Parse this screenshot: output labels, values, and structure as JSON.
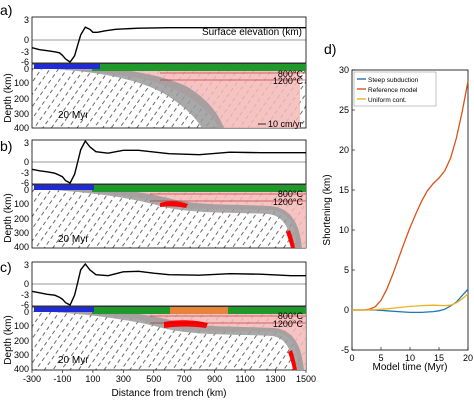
{
  "panel_letters": [
    "a)",
    "b)",
    "c)",
    "d)"
  ],
  "panels": [
    {
      "letter": "a)",
      "time_label": "20 Myr",
      "elev_label": "Surface elevation (km)",
      "iso_upper": "800°C",
      "iso_lower": "1200°C",
      "vel_label": "10 cm/yr",
      "elev_ticks": [
        "3",
        "0",
        "-3",
        "-6"
      ],
      "depth_ticks": [
        "0",
        "100",
        "200",
        "300",
        "400"
      ]
    },
    {
      "letter": "b)",
      "time_label": "20 Myr",
      "iso_upper": "800°C",
      "iso_lower": "1200°C",
      "elev_ticks": [
        "3",
        "0",
        "-3",
        "-6"
      ],
      "depth_ticks": [
        "0",
        "100",
        "200",
        "300",
        "400"
      ]
    },
    {
      "letter": "c)",
      "time_label": "20 Myr",
      "iso_upper": "800°C",
      "iso_lower": "1200°C",
      "elev_ticks": [
        "3",
        "0",
        "-3",
        "-6"
      ],
      "depth_ticks": [
        "0",
        "100",
        "200",
        "300",
        "400"
      ]
    }
  ],
  "depth_axis_label": "Depth (km)",
  "distance_axis_label": "Distance from trench (km)",
  "x_ticks": [
    "-300",
    "-100",
    "100",
    "300",
    "500",
    "700",
    "900",
    "1100",
    "1300",
    "1500"
  ],
  "colors": {
    "slab": "#9a9a9a",
    "thermal_halo": "#f4b8b8",
    "continent": "#1f9a2a",
    "ocean_plate": "#1f2bd6",
    "weak_zone": "#ff0000",
    "orange_block": "#e8843a"
  },
  "chart_data": [
    {
      "type": "line",
      "panel": "a",
      "title": "Surface elevation (km)",
      "xlabel": "Distance from trench (km)",
      "ylabel": "",
      "xlim": [
        -300,
        1500
      ],
      "ylim": [
        -6,
        3
      ],
      "series": [
        {
          "x": [
            -300,
            -250,
            -200,
            -150,
            -120,
            -100,
            -80,
            -50,
            -20,
            0,
            20,
            50,
            80,
            100,
            130,
            180,
            250,
            400,
            600,
            800,
            1000,
            1200,
            1500
          ],
          "values": [
            -3,
            -3.4,
            -3.6,
            -3.8,
            -4.0,
            -4.5,
            -5.2,
            -5.8,
            -4.6,
            -2.5,
            -0.5,
            1.0,
            0.6,
            0.0,
            0.0,
            0.3,
            0.6,
            0.8,
            0.9,
            0.9,
            0.9,
            0.9,
            0.9
          ]
        }
      ]
    },
    {
      "type": "line",
      "panel": "b",
      "xlabel": "Distance from trench (km)",
      "ylabel": "",
      "xlim": [
        -300,
        1500
      ],
      "ylim": [
        -6,
        3
      ],
      "series": [
        {
          "x": [
            -300,
            -250,
            -200,
            -150,
            -120,
            -100,
            -80,
            -50,
            -20,
            0,
            20,
            50,
            80,
            120,
            200,
            300,
            400,
            600,
            800,
            1000,
            1200,
            1400,
            1500
          ],
          "values": [
            -3,
            -3.3,
            -3.5,
            -3.8,
            -4.2,
            -4.5,
            -5.3,
            -5.8,
            -4.0,
            -1.5,
            1.0,
            2.8,
            1.6,
            0.6,
            0.3,
            0.9,
            0.9,
            0.2,
            0.0,
            0.5,
            0.4,
            0.4,
            0.4
          ]
        }
      ]
    },
    {
      "type": "line",
      "panel": "c",
      "xlabel": "Distance from trench (km)",
      "ylabel": "",
      "xlim": [
        -300,
        1500
      ],
      "ylim": [
        -6,
        3
      ],
      "series": [
        {
          "x": [
            -300,
            -250,
            -200,
            -150,
            -120,
            -100,
            -80,
            -50,
            -20,
            0,
            20,
            50,
            80,
            120,
            200,
            300,
            400,
            500,
            600,
            800,
            1000,
            1200,
            1400,
            1500
          ],
          "values": [
            -3,
            -3.3,
            -3.6,
            -3.8,
            -4.2,
            -4.6,
            -5.3,
            -5.8,
            -3.8,
            -1.2,
            1.4,
            2.6,
            1.4,
            0.4,
            0.2,
            1.0,
            1.1,
            0.7,
            0.4,
            0.3,
            0.6,
            0.5,
            0.2,
            0.2
          ]
        }
      ]
    },
    {
      "type": "line",
      "panel": "d",
      "title": "d)",
      "xlabel": "Model time (Myr)",
      "ylabel": "Shortening (km)",
      "xlim": [
        0,
        20
      ],
      "ylim": [
        -5,
        30
      ],
      "x_ticks": [
        0,
        5,
        10,
        15,
        20
      ],
      "y_ticks": [
        -5,
        0,
        5,
        10,
        15,
        20,
        25,
        30
      ],
      "legend_position": "top-left",
      "series": [
        {
          "name": "Steep subduction",
          "color": "#1f77b4",
          "x": [
            0,
            2,
            4,
            6,
            8,
            10,
            12,
            14,
            15,
            16,
            17,
            18,
            19,
            20
          ],
          "values": [
            0,
            0,
            0,
            -0.1,
            -0.2,
            -0.3,
            -0.3,
            -0.2,
            -0.1,
            0.1,
            0.5,
            1.0,
            1.8,
            2.6
          ]
        },
        {
          "name": "Reference model",
          "color": "#d95319",
          "x": [
            0,
            2,
            3,
            4,
            5,
            6,
            7,
            8,
            9,
            10,
            11,
            12,
            13,
            14,
            15,
            16,
            17,
            18,
            19,
            20
          ],
          "values": [
            0,
            0,
            0.1,
            0.4,
            1.2,
            2.6,
            4.4,
            6.4,
            8.4,
            10.3,
            12.0,
            13.6,
            14.9,
            15.8,
            16.5,
            17.4,
            19.0,
            21.5,
            24.8,
            28.6
          ]
        },
        {
          "name": "Uniform cont.",
          "color": "#edb120",
          "x": [
            0,
            2,
            4,
            6,
            8,
            10,
            12,
            14,
            16,
            17,
            18,
            19,
            20
          ],
          "values": [
            0,
            0,
            0.05,
            0.15,
            0.3,
            0.45,
            0.55,
            0.6,
            0.55,
            0.6,
            0.9,
            1.4,
            2.0
          ]
        }
      ]
    }
  ]
}
